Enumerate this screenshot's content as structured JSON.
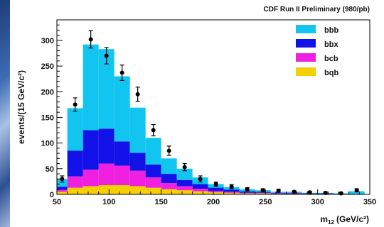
{
  "chart_data": {
    "type": "bar",
    "stacked": true,
    "title": "CDF Run II Preliminary (980/pb)",
    "ylabel": "events/(15 GeV/c²)",
    "xlabel_main": "m",
    "xlabel_sub": "12",
    "xlabel_unit": "(GeV/c²)",
    "xlim": [
      50,
      350
    ],
    "ylim": [
      0,
      340
    ],
    "xticks": [
      50,
      100,
      150,
      200,
      250,
      300,
      350
    ],
    "xtick_labels": [
      "50",
      "100",
      "150",
      "200",
      "250",
      "300",
      "350"
    ],
    "yticks": [
      0,
      50,
      100,
      150,
      200,
      250,
      300
    ],
    "ytick_labels": [
      "0",
      "50",
      "100",
      "150",
      "200",
      "250",
      "300"
    ],
    "bin_edges": [
      50,
      60,
      75,
      90,
      105,
      120,
      135,
      150,
      165,
      180,
      195,
      210,
      225,
      240,
      255,
      270,
      285,
      300,
      315,
      330,
      345
    ],
    "series": [
      {
        "name": "bqb",
        "color": "#f5d000",
        "values": [
          5,
          13,
          16,
          18,
          18,
          16,
          13,
          10,
          8,
          6,
          4,
          3,
          2,
          2,
          1,
          1,
          1,
          1,
          0,
          0
        ]
      },
      {
        "name": "bcb",
        "color": "#f020e0",
        "values": [
          4,
          22,
          32,
          42,
          38,
          30,
          20,
          12,
          8,
          5,
          3,
          2,
          1,
          1,
          1,
          1,
          0,
          0,
          0,
          0
        ]
      },
      {
        "name": "bbx",
        "color": "#1212e8",
        "values": [
          6,
          50,
          77,
          68,
          47,
          35,
          25,
          18,
          12,
          9,
          6,
          4,
          3,
          2,
          1,
          1,
          1,
          1,
          0,
          0
        ]
      },
      {
        "name": "bbb",
        "color": "#11c5f0",
        "values": [
          15,
          83,
          167,
          155,
          127,
          88,
          52,
          30,
          22,
          13,
          7,
          5,
          4,
          3,
          2,
          2,
          1,
          1,
          2,
          6
        ]
      }
    ],
    "data_points": {
      "x": [
        55,
        67.5,
        82.5,
        97.5,
        112.5,
        127.5,
        142.5,
        157.5,
        172.5,
        187.5,
        202.5,
        217.5,
        232.5,
        247.5,
        262.5,
        277.5,
        292.5,
        307.5,
        322.5,
        337.5
      ],
      "y": [
        30,
        175,
        302,
        270,
        237,
        195,
        125,
        85,
        53,
        30,
        20,
        15,
        10,
        8,
        7,
        5,
        4,
        3,
        2,
        8
      ],
      "err": [
        6,
        13,
        17,
        16,
        15,
        14,
        11,
        9,
        7,
        6,
        4,
        4,
        3,
        3,
        3,
        2,
        2,
        2,
        2,
        3
      ]
    },
    "legend": {
      "position": "top-right",
      "order": [
        "bbb",
        "bbx",
        "bcb",
        "bqb"
      ]
    }
  }
}
